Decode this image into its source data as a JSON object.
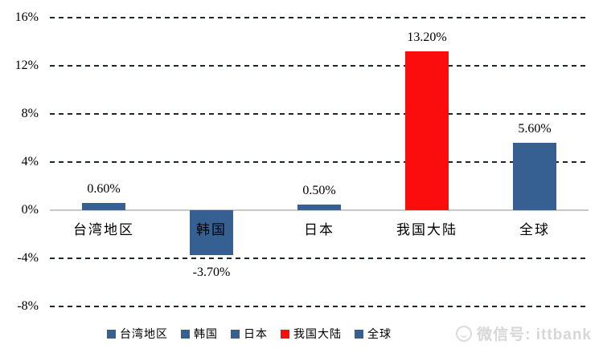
{
  "chart_data": {
    "type": "bar",
    "title": "",
    "xlabel": "",
    "ylabel": "",
    "categories": [
      "台湾地区",
      "韩国",
      "日本",
      "我国大陆",
      "全球"
    ],
    "values": [
      0.6,
      -3.7,
      0.5,
      13.2,
      5.6
    ],
    "data_labels": [
      "0.60%",
      "-3.70%",
      "0.50%",
      "13.20%",
      "5.60%"
    ],
    "bar_colors": [
      "#376092",
      "#376092",
      "#376092",
      "#FB0D0D",
      "#376092"
    ],
    "ylim": [
      -8,
      16
    ],
    "yticks": [
      16,
      12,
      8,
      4,
      0,
      -4,
      -8
    ],
    "ytick_labels": [
      "16%",
      "12%",
      "8%",
      "4%",
      "0%",
      "-4%",
      "-8%"
    ],
    "grid": "horizontal-dashed",
    "legend_position": "bottom",
    "legend": [
      {
        "label": "台湾地区",
        "color": "#376092"
      },
      {
        "label": "韩国",
        "color": "#376092"
      },
      {
        "label": "日本",
        "color": "#376092"
      },
      {
        "label": "我国大陆",
        "color": "#FB0D0D"
      },
      {
        "label": "全球",
        "color": "#376092"
      }
    ]
  },
  "colors": {
    "background": "#ffffff",
    "gridline": "#20242e",
    "zero_axis": "#c8c8c8",
    "bar_blue": "#376092",
    "bar_red": "#FB0D0D",
    "watermark_gray": "#d7d7d7"
  },
  "watermark": {
    "logo": "wechat-circle-logo",
    "text": "微信号: ittbank"
  }
}
